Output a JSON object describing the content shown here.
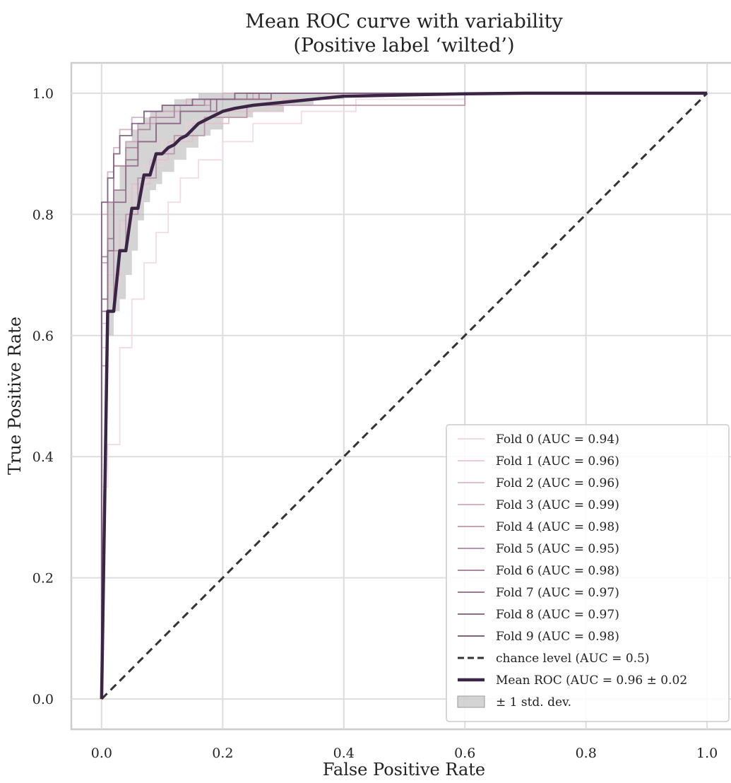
{
  "chart_data": {
    "type": "line",
    "title": [
      "Mean ROC curve with variability",
      "(Positive label ‘wilted’)"
    ],
    "xlabel": "False Positive Rate",
    "ylabel": "True Positive Rate",
    "xlim": [
      -0.05,
      1.05
    ],
    "ylim": [
      -0.05,
      1.05
    ],
    "xticks": [
      0.0,
      0.2,
      0.4,
      0.6,
      0.8,
      1.0
    ],
    "xtick_labels": [
      "0.0",
      "0.2",
      "0.4",
      "0.6",
      "0.8",
      "1.0"
    ],
    "yticks": [
      0.0,
      0.2,
      0.4,
      0.6,
      0.8,
      1.0
    ],
    "ytick_labels": [
      "0.0",
      "0.2",
      "0.4",
      "0.6",
      "0.8",
      "1.0"
    ],
    "grid": true,
    "legend_position": "lower-right",
    "fold_colors": [
      "#f1d9df",
      "#eacdd6",
      "#e1c0cc",
      "#d6b1c2",
      "#c9a2b6",
      "#bb94ab",
      "#ad869f",
      "#9e7994",
      "#8f6c89",
      "#80617f"
    ],
    "folds": [
      {
        "name": "Fold 0 (AUC = 0.94)",
        "x": [
          0,
          0,
          0.01,
          0.01,
          0.03,
          0.03,
          0.05,
          0.05,
          0.07,
          0.07,
          0.09,
          0.09,
          0.11,
          0.11,
          0.13,
          0.13,
          0.16,
          0.16,
          0.2,
          0.2,
          0.25,
          0.25,
          0.33,
          0.33,
          0.42,
          0.42,
          0.6,
          0.6,
          1.0
        ],
        "y": [
          0,
          0.35,
          0.35,
          0.42,
          0.42,
          0.58,
          0.58,
          0.66,
          0.66,
          0.72,
          0.72,
          0.77,
          0.77,
          0.82,
          0.82,
          0.86,
          0.86,
          0.89,
          0.89,
          0.92,
          0.92,
          0.95,
          0.95,
          0.97,
          0.97,
          0.99,
          0.99,
          1.0,
          1.0
        ]
      },
      {
        "name": "Fold 1 (AUC = 0.96)",
        "x": [
          0,
          0,
          0.01,
          0.01,
          0.03,
          0.03,
          0.05,
          0.05,
          0.07,
          0.07,
          0.1,
          0.1,
          0.14,
          0.14,
          0.2,
          0.2,
          0.28,
          0.28,
          0.38,
          0.38,
          1.0
        ],
        "y": [
          0,
          0.58,
          0.58,
          0.68,
          0.68,
          0.78,
          0.78,
          0.84,
          0.84,
          0.88,
          0.88,
          0.92,
          0.92,
          0.95,
          0.95,
          0.97,
          0.97,
          0.99,
          0.99,
          1.0,
          1.0
        ]
      },
      {
        "name": "Fold 2 (AUC = 0.96)",
        "x": [
          0,
          0,
          0.01,
          0.01,
          0.03,
          0.03,
          0.05,
          0.05,
          0.08,
          0.08,
          0.11,
          0.11,
          0.15,
          0.15,
          0.21,
          0.21,
          0.3,
          0.3,
          0.36,
          0.36,
          1.0
        ],
        "y": [
          0,
          0.62,
          0.62,
          0.7,
          0.7,
          0.79,
          0.79,
          0.85,
          0.85,
          0.89,
          0.89,
          0.92,
          0.92,
          0.95,
          0.95,
          0.97,
          0.97,
          0.99,
          0.99,
          1.0,
          1.0
        ]
      },
      {
        "name": "Fold 3 (AUC = 0.99)",
        "x": [
          0,
          0,
          0.01,
          0.01,
          0.02,
          0.02,
          0.03,
          0.03,
          0.05,
          0.05,
          0.07,
          0.07,
          0.1,
          0.1,
          0.14,
          0.14,
          0.2,
          0.2,
          1.0
        ],
        "y": [
          0,
          0.8,
          0.8,
          0.87,
          0.87,
          0.91,
          0.91,
          0.94,
          0.94,
          0.96,
          0.96,
          0.97,
          0.97,
          0.98,
          0.98,
          0.99,
          0.99,
          1.0,
          1.0
        ]
      },
      {
        "name": "Fold 4 (AUC = 0.98)",
        "x": [
          0,
          0,
          0.01,
          0.01,
          0.02,
          0.02,
          0.04,
          0.04,
          0.06,
          0.06,
          0.09,
          0.09,
          0.13,
          0.13,
          0.18,
          0.18,
          0.25,
          0.25,
          1.0
        ],
        "y": [
          0,
          0.72,
          0.72,
          0.82,
          0.82,
          0.88,
          0.88,
          0.92,
          0.92,
          0.95,
          0.95,
          0.97,
          0.97,
          0.98,
          0.98,
          0.99,
          0.99,
          1.0,
          1.0
        ]
      },
      {
        "name": "Fold 5 (AUC = 0.95)",
        "x": [
          0,
          0,
          0.01,
          0.01,
          0.02,
          0.02,
          0.04,
          0.04,
          0.06,
          0.06,
          0.09,
          0.09,
          0.12,
          0.12,
          0.17,
          0.17,
          0.24,
          0.24,
          0.6,
          0.6,
          1.0
        ],
        "y": [
          0,
          0.55,
          0.55,
          0.64,
          0.64,
          0.74,
          0.74,
          0.8,
          0.8,
          0.86,
          0.86,
          0.9,
          0.9,
          0.93,
          0.93,
          0.96,
          0.96,
          0.98,
          0.98,
          1.0,
          1.0
        ]
      },
      {
        "name": "Fold 6 (AUC = 0.98)",
        "x": [
          0,
          0,
          0.01,
          0.01,
          0.02,
          0.02,
          0.04,
          0.04,
          0.06,
          0.06,
          0.08,
          0.08,
          0.12,
          0.12,
          0.17,
          0.17,
          0.24,
          0.24,
          1.0
        ],
        "y": [
          0,
          0.73,
          0.73,
          0.82,
          0.82,
          0.88,
          0.88,
          0.91,
          0.91,
          0.94,
          0.94,
          0.96,
          0.96,
          0.98,
          0.98,
          0.99,
          0.99,
          1.0,
          1.0
        ]
      },
      {
        "name": "Fold 7 (AUC = 0.97)",
        "x": [
          0,
          0,
          0.01,
          0.01,
          0.02,
          0.02,
          0.04,
          0.04,
          0.06,
          0.06,
          0.09,
          0.09,
          0.13,
          0.13,
          0.18,
          0.18,
          0.26,
          0.26,
          1.0
        ],
        "y": [
          0,
          0.66,
          0.66,
          0.76,
          0.76,
          0.84,
          0.84,
          0.89,
          0.89,
          0.92,
          0.92,
          0.95,
          0.95,
          0.97,
          0.97,
          0.99,
          0.99,
          1.0,
          1.0
        ]
      },
      {
        "name": "Fold 8 (AUC = 0.97)",
        "x": [
          0,
          0,
          0.01,
          0.01,
          0.02,
          0.02,
          0.04,
          0.04,
          0.06,
          0.06,
          0.09,
          0.09,
          0.13,
          0.13,
          0.19,
          0.19,
          0.28,
          0.28,
          1.0
        ],
        "y": [
          0,
          0.64,
          0.64,
          0.74,
          0.74,
          0.82,
          0.82,
          0.88,
          0.88,
          0.92,
          0.92,
          0.95,
          0.95,
          0.97,
          0.97,
          0.99,
          0.99,
          1.0,
          1.0
        ]
      },
      {
        "name": "Fold 9 (AUC = 0.98)",
        "x": [
          0,
          0,
          0.01,
          0.01,
          0.02,
          0.02,
          0.03,
          0.03,
          0.05,
          0.05,
          0.07,
          0.07,
          0.1,
          0.1,
          0.15,
          0.15,
          0.22,
          0.22,
          1.0
        ],
        "y": [
          0,
          0.82,
          0.82,
          0.86,
          0.86,
          0.9,
          0.9,
          0.93,
          0.93,
          0.95,
          0.95,
          0.97,
          0.97,
          0.98,
          0.98,
          0.99,
          0.99,
          1.0,
          1.0
        ]
      }
    ],
    "chance": {
      "name": "chance level (AUC = 0.5)",
      "x": [
        0,
        1
      ],
      "y": [
        0,
        1
      ],
      "color": "#333333"
    },
    "mean": {
      "name": "Mean ROC (AUC = 0.96 ± 0.02",
      "color": "#3a2545",
      "x": [
        0,
        0.01,
        0.02,
        0.03,
        0.04,
        0.05,
        0.06,
        0.07,
        0.08,
        0.09,
        0.1,
        0.11,
        0.12,
        0.13,
        0.14,
        0.15,
        0.16,
        0.17,
        0.18,
        0.2,
        0.22,
        0.25,
        0.3,
        0.35,
        0.4,
        0.5,
        0.6,
        0.7,
        1.0
      ],
      "y": [
        0,
        0.64,
        0.64,
        0.74,
        0.74,
        0.81,
        0.81,
        0.865,
        0.865,
        0.9,
        0.9,
        0.91,
        0.915,
        0.925,
        0.93,
        0.94,
        0.95,
        0.955,
        0.96,
        0.97,
        0.975,
        0.98,
        0.985,
        0.99,
        0.995,
        0.997,
        0.999,
        1.0,
        1.0
      ]
    },
    "std_band": {
      "name": "± 1 std. dev.",
      "color": "#b8b8b8",
      "x": [
        0.01,
        0.02,
        0.03,
        0.04,
        0.05,
        0.06,
        0.07,
        0.08,
        0.09,
        0.1,
        0.12,
        0.14,
        0.16,
        0.18,
        0.2,
        0.25,
        0.3,
        0.35,
        0.4
      ],
      "upper": [
        0.82,
        0.84,
        0.88,
        0.92,
        0.94,
        0.95,
        0.96,
        0.97,
        0.97,
        0.98,
        0.99,
        0.99,
        1.0,
        1.0,
        1.0,
        1.0,
        1.0,
        1.0,
        1.0
      ],
      "lower": [
        0.46,
        0.6,
        0.64,
        0.66,
        0.7,
        0.74,
        0.79,
        0.82,
        0.84,
        0.85,
        0.87,
        0.89,
        0.91,
        0.93,
        0.94,
        0.96,
        0.97,
        0.98,
        0.99
      ]
    }
  }
}
